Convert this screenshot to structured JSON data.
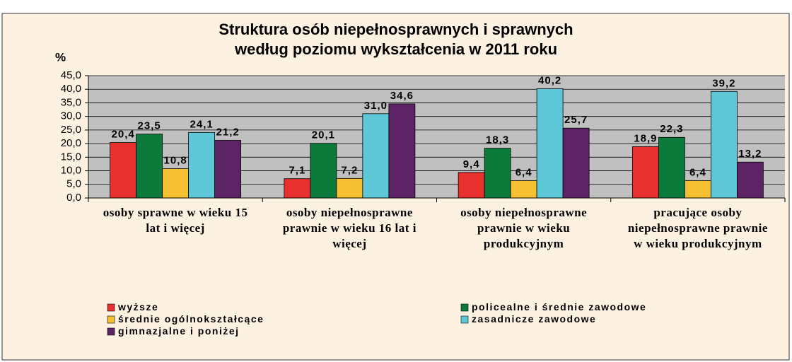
{
  "chart_data": {
    "type": "bar",
    "title": [
      "Struktura osób niepełnosprawnych i sprawnych",
      "według poziomu wykształcenia w 2011 roku"
    ],
    "y_label": "%",
    "categories": [
      "osoby sprawne w wieku 15 lat i więcej",
      "osoby niepełnosprawne prawnie w wieku 16 lat i więcej",
      "osoby niepełnosprawne prawnie w wieku produkcyjnym",
      "pracujące osoby niepełnosprawne prawnie w wieku produkcyjnym"
    ],
    "series": [
      {
        "name": "wyższe",
        "color": "#e8302e",
        "values": [
          20.4,
          7.1,
          9.4,
          18.9
        ],
        "value_labels": [
          "20,4",
          "7,1",
          "9,4",
          "18,9"
        ]
      },
      {
        "name": "policealne i średnie zawodowe",
        "color": "#0b7a3b",
        "values": [
          23.5,
          20.1,
          18.3,
          22.3
        ],
        "value_labels": [
          "23,5",
          "20,1",
          "18,3",
          "22,3"
        ]
      },
      {
        "name": "średnie ogólnokształcące",
        "color": "#f5c132",
        "values": [
          10.8,
          7.2,
          6.4,
          6.4
        ],
        "value_labels": [
          "10,8",
          "7,2",
          "6,4",
          "6,4"
        ]
      },
      {
        "name": "zasadnicze zawodowe",
        "color": "#5ec8d8",
        "values": [
          24.1,
          31.0,
          40.2,
          39.2
        ],
        "value_labels": [
          "24,1",
          "31,0",
          "40,2",
          "39,2"
        ]
      },
      {
        "name": "gimnazjalne i poniżej",
        "color": "#5c2465",
        "values": [
          21.2,
          34.6,
          25.7,
          13.2
        ],
        "value_labels": [
          "21,2",
          "34,6",
          "25,7",
          "13,2"
        ]
      }
    ],
    "ylim": [
      0,
      45
    ],
    "yticks": [
      {
        "value": 0,
        "label": "0,0"
      },
      {
        "value": 5,
        "label": "5,0"
      },
      {
        "value": 10,
        "label": "10,0"
      },
      {
        "value": 15,
        "label": "15,0"
      },
      {
        "value": 20,
        "label": "20,0"
      },
      {
        "value": 25,
        "label": "25,0"
      },
      {
        "value": 30,
        "label": "30,0"
      },
      {
        "value": 35,
        "label": "35,0"
      },
      {
        "value": 40,
        "label": "40,0"
      },
      {
        "value": 45,
        "label": "45,0"
      }
    ],
    "grid": true,
    "legend": "bottom"
  }
}
